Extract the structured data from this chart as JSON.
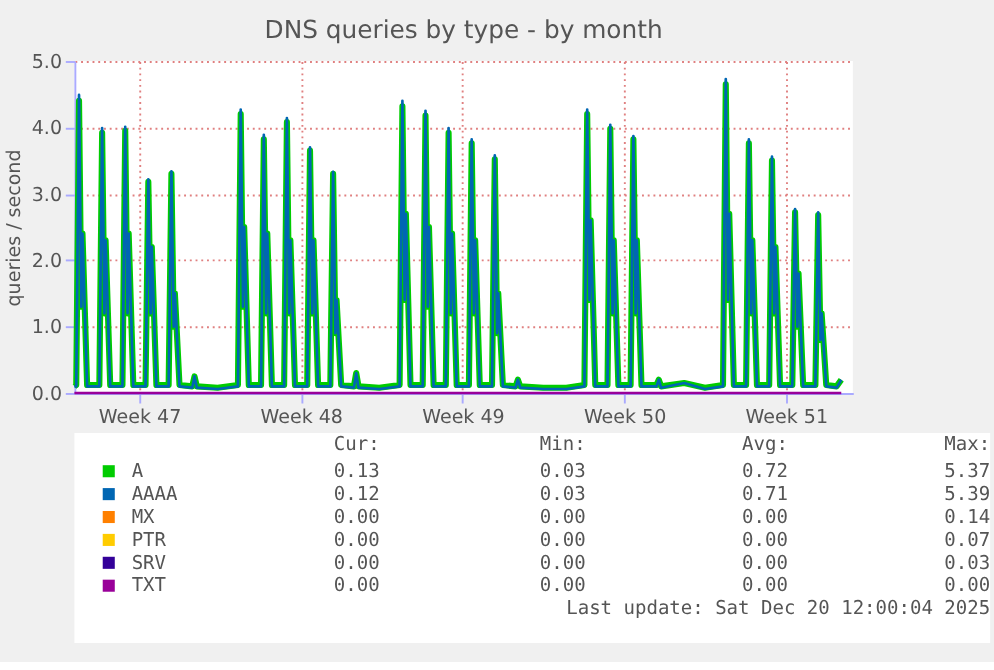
{
  "chart_data": {
    "type": "line",
    "title": "DNS queries by type - by month",
    "ylabel": "queries / second",
    "x": [
      "2025-11-17T04:48",
      "2025-11-17T06:43",
      "2025-11-17T09:36",
      "2025-11-17T12:00",
      "2025-11-17T13:12",
      "2025-11-17T18:00",
      "2025-11-18T06:43",
      "2025-11-18T09:36",
      "2025-11-18T12:00",
      "2025-11-18T13:12",
      "2025-11-18T18:00",
      "2025-11-19T06:43",
      "2025-11-19T09:36",
      "2025-11-19T12:00",
      "2025-11-19T13:12",
      "2025-11-19T18:00",
      "2025-11-20T06:43",
      "2025-11-20T09:36",
      "2025-11-20T12:00",
      "2025-11-20T13:12",
      "2025-11-20T18:00",
      "2025-11-21T06:43",
      "2025-11-21T09:36",
      "2025-11-21T12:00",
      "2025-11-21T13:12",
      "2025-11-21T18:00",
      "2025-11-22T07:12",
      "2025-11-22T09:36",
      "2025-11-22T12:00",
      "2025-11-23T09:36",
      "2025-11-24T06:43",
      "2025-11-24T09:36",
      "2025-11-24T12:00",
      "2025-11-24T13:12",
      "2025-11-24T18:00",
      "2025-11-25T06:43",
      "2025-11-25T09:36",
      "2025-11-25T12:00",
      "2025-11-25T13:12",
      "2025-11-25T18:00",
      "2025-11-26T06:43",
      "2025-11-26T09:36",
      "2025-11-26T12:00",
      "2025-11-26T13:12",
      "2025-11-26T18:00",
      "2025-11-27T06:43",
      "2025-11-27T09:36",
      "2025-11-27T12:00",
      "2025-11-27T13:12",
      "2025-11-27T18:00",
      "2025-11-28T06:43",
      "2025-11-28T09:36",
      "2025-11-28T12:00",
      "2025-11-28T13:12",
      "2025-11-28T18:00",
      "2025-11-29T07:12",
      "2025-11-29T09:36",
      "2025-11-29T12:00",
      "2025-11-30T09:36",
      "2025-12-01T06:43",
      "2025-12-01T09:36",
      "2025-12-01T12:00",
      "2025-12-01T13:12",
      "2025-12-01T18:00",
      "2025-12-02T06:43",
      "2025-12-02T09:36",
      "2025-12-02T12:00",
      "2025-12-02T13:12",
      "2025-12-02T18:00",
      "2025-12-03T06:43",
      "2025-12-03T09:36",
      "2025-12-03T12:00",
      "2025-12-03T13:12",
      "2025-12-03T18:00",
      "2025-12-04T06:43",
      "2025-12-04T09:36",
      "2025-12-04T12:00",
      "2025-12-04T13:12",
      "2025-12-04T18:00",
      "2025-12-05T06:43",
      "2025-12-05T09:36",
      "2025-12-05T12:00",
      "2025-12-05T13:12",
      "2025-12-05T18:00",
      "2025-12-06T07:12",
      "2025-12-06T09:36",
      "2025-12-06T12:00",
      "2025-12-07T12:00",
      "2025-12-08T12:00",
      "2025-12-09T06:43",
      "2025-12-09T09:36",
      "2025-12-09T12:00",
      "2025-12-09T13:12",
      "2025-12-09T18:00",
      "2025-12-10T06:43",
      "2025-12-10T09:36",
      "2025-12-10T12:00",
      "2025-12-10T13:12",
      "2025-12-10T18:00",
      "2025-12-11T06:43",
      "2025-12-11T09:36",
      "2025-12-11T12:00",
      "2025-12-11T13:12",
      "2025-12-11T18:00",
      "2025-12-12T09:36",
      "2025-12-12T12:00",
      "2025-12-12T14:24",
      "2025-12-13T14:24",
      "2025-12-14T12:00",
      "2025-12-15T06:43",
      "2025-12-15T09:36",
      "2025-12-15T12:00",
      "2025-12-15T13:12",
      "2025-12-15T18:00",
      "2025-12-16T06:43",
      "2025-12-16T09:36",
      "2025-12-16T12:00",
      "2025-12-16T13:12",
      "2025-12-16T18:00",
      "2025-12-17T06:43",
      "2025-12-17T09:36",
      "2025-12-17T12:00",
      "2025-12-17T13:12",
      "2025-12-17T18:00",
      "2025-12-18T06:43",
      "2025-12-18T09:36",
      "2025-12-18T12:00",
      "2025-12-18T13:12",
      "2025-12-18T18:00",
      "2025-12-19T06:43",
      "2025-12-19T09:36",
      "2025-12-19T12:00",
      "2025-12-19T13:12",
      "2025-12-19T18:00",
      "2025-12-20T04:48",
      "2025-12-20T09:36"
    ],
    "series": [
      {
        "name": "A",
        "color": "#00cc00",
        "values": [
          0.1,
          0.12,
          4.4,
          1.3,
          2.4,
          0.12,
          0.12,
          3.92,
          1.2,
          2.3,
          0.12,
          0.12,
          3.95,
          1.2,
          2.4,
          0.12,
          0.12,
          3.18,
          1.2,
          2.2,
          0.12,
          0.12,
          3.3,
          1.0,
          1.5,
          0.12,
          0.1,
          0.25,
          0.1,
          0.08,
          0.12,
          4.2,
          1.3,
          2.5,
          0.12,
          0.12,
          3.82,
          1.2,
          2.4,
          0.12,
          0.12,
          4.08,
          1.2,
          2.3,
          0.12,
          0.12,
          3.65,
          1.2,
          2.3,
          0.12,
          0.12,
          3.3,
          0.9,
          1.4,
          0.12,
          0.1,
          0.3,
          0.1,
          0.08,
          0.12,
          4.32,
          1.4,
          2.7,
          0.12,
          0.12,
          4.18,
          1.3,
          2.5,
          0.12,
          0.12,
          3.92,
          1.2,
          2.4,
          0.12,
          0.12,
          3.76,
          1.2,
          2.3,
          0.12,
          0.12,
          3.52,
          0.9,
          1.5,
          0.12,
          0.1,
          0.2,
          0.1,
          0.08,
          0.08,
          0.12,
          4.2,
          1.4,
          2.6,
          0.12,
          0.12,
          3.98,
          1.2,
          2.3,
          0.12,
          0.12,
          3.82,
          1.2,
          2.3,
          0.12,
          0.12,
          0.2,
          0.1,
          0.15,
          0.08,
          0.12,
          4.65,
          1.4,
          2.7,
          0.12,
          0.12,
          3.76,
          1.2,
          2.3,
          0.12,
          0.12,
          3.5,
          1.2,
          2.2,
          0.12,
          0.12,
          2.72,
          1.0,
          1.8,
          0.12,
          0.12,
          2.68,
          0.8,
          1.2,
          0.12,
          0.1,
          0.2
        ]
      },
      {
        "name": "AAAA",
        "color": "#0066b3",
        "values": [
          0.1,
          0.1,
          4.49,
          1.3,
          2.4,
          0.1,
          0.1,
          3.99,
          1.2,
          2.3,
          0.1,
          0.1,
          4.01,
          1.2,
          2.4,
          0.1,
          0.1,
          3.22,
          1.2,
          2.2,
          0.1,
          0.1,
          3.34,
          1.0,
          1.5,
          0.1,
          0.08,
          0.25,
          0.08,
          0.06,
          0.1,
          4.27,
          1.3,
          2.5,
          0.1,
          0.1,
          3.89,
          1.2,
          2.4,
          0.1,
          0.1,
          4.14,
          1.2,
          2.3,
          0.1,
          0.1,
          3.7,
          1.2,
          2.3,
          0.1,
          0.1,
          3.33,
          0.9,
          1.4,
          0.1,
          0.08,
          0.3,
          0.08,
          0.06,
          0.1,
          4.4,
          1.4,
          2.7,
          0.1,
          0.1,
          4.25,
          1.3,
          2.5,
          0.1,
          0.1,
          3.99,
          1.2,
          2.4,
          0.1,
          0.1,
          3.82,
          1.2,
          2.3,
          0.1,
          0.1,
          3.58,
          0.9,
          1.5,
          0.1,
          0.08,
          0.2,
          0.08,
          0.06,
          0.06,
          0.1,
          4.27,
          1.4,
          2.6,
          0.1,
          0.1,
          4.04,
          1.2,
          2.3,
          0.1,
          0.1,
          3.87,
          1.2,
          2.3,
          0.1,
          0.1,
          0.2,
          0.08,
          0.15,
          0.06,
          0.1,
          4.73,
          1.4,
          2.7,
          0.1,
          0.1,
          3.82,
          1.2,
          2.3,
          0.1,
          0.1,
          3.56,
          1.2,
          2.2,
          0.1,
          0.1,
          2.77,
          1.0,
          1.8,
          0.1,
          0.1,
          2.72,
          0.8,
          1.2,
          0.1,
          0.08,
          0.2
        ]
      },
      {
        "name": "MX",
        "color": "#ff8000",
        "values": [
          null,
          null,
          null,
          null,
          null,
          null,
          null,
          null,
          null,
          null,
          null,
          null,
          null,
          null,
          null,
          null,
          null,
          null,
          null,
          null,
          null,
          null,
          null,
          null,
          null,
          null,
          null,
          null,
          null,
          null,
          null,
          null,
          null,
          null,
          null,
          null,
          null,
          null,
          null,
          null,
          null,
          null,
          null,
          null,
          null,
          null,
          null,
          null,
          null,
          null,
          null,
          null,
          null,
          null,
          null,
          null,
          null,
          null,
          null,
          null,
          null,
          null,
          null,
          null,
          null,
          null,
          null,
          null,
          null,
          null,
          null,
          null,
          null,
          null,
          null,
          null,
          null,
          null,
          null,
          null,
          null,
          null,
          null,
          null,
          null,
          null,
          null,
          null,
          null,
          null,
          null,
          null,
          null,
          null,
          null,
          null,
          null,
          null,
          null,
          null,
          null,
          null,
          null,
          null,
          null,
          null,
          null,
          null,
          null,
          null,
          null,
          null,
          null,
          null,
          null,
          null,
          null,
          null,
          null,
          null,
          null,
          null,
          null,
          null,
          null,
          null,
          null,
          null,
          null,
          null,
          null,
          null,
          null,
          null,
          null,
          null
        ]
      },
      {
        "name": "PTR",
        "color": "#ffcc00",
        "values": [
          null,
          null,
          null,
          null,
          null,
          null,
          null,
          null,
          null,
          null,
          null,
          null,
          null,
          null,
          null,
          null,
          null,
          null,
          null,
          null,
          null,
          null,
          null,
          null,
          null,
          null,
          null,
          null,
          null,
          null,
          null,
          null,
          null,
          null,
          null,
          null,
          null,
          null,
          null,
          null,
          null,
          null,
          null,
          null,
          null,
          null,
          null,
          null,
          null,
          null,
          null,
          null,
          null,
          null,
          null,
          null,
          null,
          null,
          null,
          null,
          null,
          null,
          null,
          null,
          null,
          null,
          null,
          null,
          null,
          null,
          null,
          null,
          null,
          null,
          null,
          null,
          null,
          null,
          null,
          null,
          null,
          null,
          null,
          null,
          null,
          null,
          null,
          null,
          null,
          null,
          null,
          null,
          null,
          null,
          null,
          null,
          null,
          null,
          null,
          null,
          null,
          null,
          null,
          null,
          null,
          null,
          null,
          null,
          null,
          null,
          null,
          null,
          null,
          null,
          null,
          null,
          null,
          null,
          null,
          null,
          null,
          null,
          null,
          null,
          null,
          null,
          null,
          null,
          null,
          null,
          null,
          null,
          null,
          null,
          null,
          null
        ]
      },
      {
        "name": "SRV",
        "color": "#330099",
        "values": [
          null,
          null,
          null,
          null,
          null,
          null,
          null,
          null,
          null,
          null,
          null,
          null,
          null,
          null,
          null,
          null,
          null,
          null,
          null,
          null,
          null,
          null,
          null,
          null,
          null,
          null,
          null,
          null,
          null,
          null,
          null,
          null,
          null,
          null,
          null,
          null,
          null,
          null,
          null,
          null,
          null,
          null,
          null,
          null,
          null,
          null,
          null,
          null,
          null,
          null,
          null,
          null,
          null,
          null,
          null,
          null,
          null,
          null,
          null,
          null,
          null,
          null,
          null,
          null,
          null,
          null,
          null,
          null,
          null,
          null,
          null,
          null,
          null,
          null,
          null,
          null,
          null,
          null,
          null,
          null,
          null,
          null,
          null,
          null,
          null,
          null,
          null,
          null,
          null,
          null,
          null,
          null,
          null,
          null,
          null,
          null,
          null,
          null,
          null,
          null,
          null,
          null,
          null,
          null,
          null,
          null,
          null,
          null,
          null,
          null,
          null,
          null,
          null,
          null,
          null,
          null,
          null,
          null,
          null,
          null,
          null,
          null,
          null,
          null,
          null,
          null,
          null,
          null,
          null,
          null,
          null,
          null,
          null,
          null,
          null,
          null
        ]
      },
      {
        "name": "TXT",
        "color": "#990099",
        "x": [
          "2025-11-17T04:48",
          "2025-12-20T09:36"
        ],
        "values": [
          0,
          0
        ]
      }
    ],
    "xlim": [
      "2025-11-17T04:48",
      "2025-12-20T21:36"
    ],
    "xticks": [
      {
        "value": "2025-11-20",
        "label": "Week 47"
      },
      {
        "value": "2025-11-27",
        "label": "Week 48"
      },
      {
        "value": "2025-12-04",
        "label": "Week 49"
      },
      {
        "value": "2025-12-11",
        "label": "Week 50"
      },
      {
        "value": "2025-12-18",
        "label": "Week 51"
      }
    ],
    "ylim": [
      0,
      5
    ],
    "yticks": [
      {
        "value": 0,
        "label": "0.0"
      },
      {
        "value": 1,
        "label": "1.0"
      },
      {
        "value": 2,
        "label": "2.0"
      },
      {
        "value": 3,
        "label": "3.0"
      },
      {
        "value": 4,
        "label": "4.0"
      },
      {
        "value": 5,
        "label": "5.0"
      }
    ],
    "grid": true,
    "legend": "bottom",
    "line_style": "solid",
    "marker": "none",
    "annotations": [
      "Cur:",
      "Min:",
      "Avg:",
      "Max:",
      "0.13",
      "0.03",
      "0.72",
      "5.37",
      "0.12",
      "0.03",
      "0.71",
      "5.39",
      "0.00",
      "0.00",
      "0.00",
      "0.14",
      "0.00",
      "0.00",
      "0.00",
      "0.07",
      "0.00",
      "0.00",
      "0.00",
      "0.03",
      "0.00",
      "0.00",
      "0.00",
      "0.00",
      "Last update: Sat Dec 20 12:00:04 2025"
    ]
  }
}
